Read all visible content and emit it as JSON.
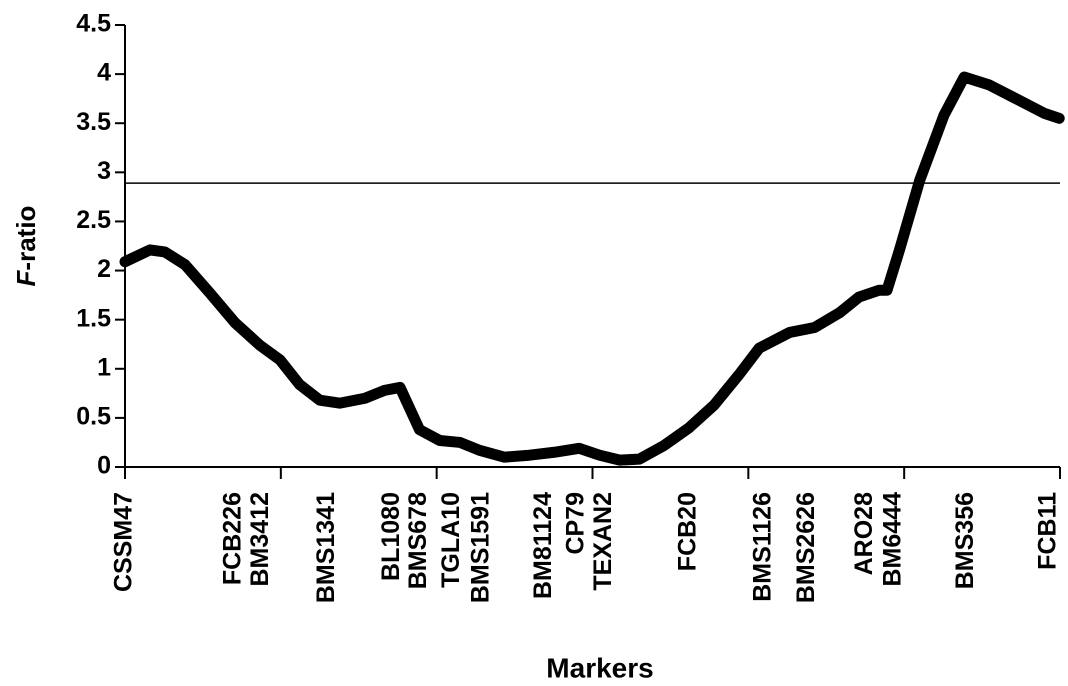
{
  "chart_data": {
    "type": "line",
    "x_label": "Markers",
    "y_label": {
      "italic": "F",
      "text": "-ratio"
    },
    "xlim": [
      0,
      120
    ],
    "xticks": [
      0,
      20,
      40,
      60,
      80,
      100,
      120
    ],
    "ylim": [
      0,
      4.5
    ],
    "yticks": [
      0,
      0.5,
      1,
      1.5,
      2,
      2.5,
      3,
      3.5,
      4,
      4.5
    ],
    "threshold": 2.89,
    "markers": [
      {
        "name": "CSSM47",
        "x": 0
      },
      {
        "name": "FCB226",
        "x": 14
      },
      {
        "name": "BM3412",
        "x": 17.5
      },
      {
        "name": "BMS1341",
        "x": 26
      },
      {
        "name": "BL1080",
        "x": 34.3
      },
      {
        "name": "BMS678",
        "x": 37.8
      },
      {
        "name": "TGLA10",
        "x": 42
      },
      {
        "name": "BMS1591",
        "x": 45.8
      },
      {
        "name": "BM81124",
        "x": 53.8
      },
      {
        "name": "CP79",
        "x": 58
      },
      {
        "name": "TEXAN2",
        "x": 61.5
      },
      {
        "name": "FCB20",
        "x": 72.4
      },
      {
        "name": "BMS1126",
        "x": 82
      },
      {
        "name": "BMS2626",
        "x": 87.6
      },
      {
        "name": "ARO28",
        "x": 95
      },
      {
        "name": "BM6444",
        "x": 98.7
      },
      {
        "name": "BMS356",
        "x": 108
      },
      {
        "name": "FCB11",
        "x": 118.6
      }
    ],
    "color": "#000000",
    "x": [
      0,
      3.2,
      5.1,
      7.7,
      10.9,
      14.1,
      17.3,
      19.9,
      22.4,
      25,
      27.6,
      30.8,
      33.3,
      35.3,
      37.8,
      40.4,
      43,
      45.5,
      48.7,
      51.9,
      55.1,
      58.3,
      60.9,
      63.5,
      66,
      69.2,
      72.4,
      75.6,
      78.8,
      81.4,
      85.3,
      88.5,
      91.7,
      94.2,
      96.8,
      97.8,
      99.4,
      102,
      105.1,
      107.7,
      110.9,
      114.1,
      118,
      119.9
    ],
    "values": [
      2.09,
      2.21,
      2.19,
      2.06,
      1.77,
      1.47,
      1.24,
      1.09,
      0.84,
      0.68,
      0.65,
      0.7,
      0.78,
      0.81,
      0.38,
      0.27,
      0.25,
      0.17,
      0.1,
      0.12,
      0.15,
      0.19,
      0.12,
      0.07,
      0.08,
      0.22,
      0.4,
      0.63,
      0.94,
      1.21,
      1.37,
      1.42,
      1.57,
      1.73,
      1.8,
      1.8,
      2.21,
      2.92,
      3.58,
      3.97,
      3.89,
      3.76,
      3.6,
      3.55
    ]
  }
}
